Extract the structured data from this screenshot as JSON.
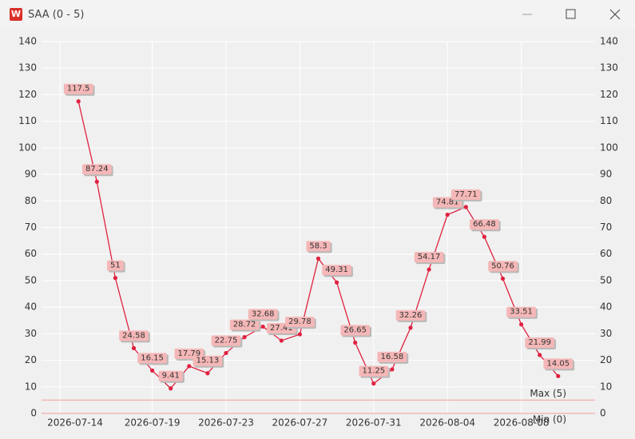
{
  "window": {
    "title": "SAA (0 - 5)"
  },
  "chart_data": {
    "type": "line",
    "x": [
      "2026-07-15",
      "2026-07-16",
      "2026-07-17",
      "2026-07-18",
      "2026-07-19",
      "2026-07-20",
      "2026-07-21",
      "2026-07-22",
      "2026-07-23",
      "2026-07-24",
      "2026-07-25",
      "2026-07-26",
      "2026-07-27",
      "2026-07-28",
      "2026-07-29",
      "2026-07-30",
      "2026-07-31",
      "2026-08-01",
      "2026-08-02",
      "2026-08-03",
      "2026-08-04",
      "2026-08-05",
      "2026-08-06",
      "2026-08-07",
      "2026-08-08",
      "2026-08-09",
      "2026-08-10"
    ],
    "series": [
      {
        "color": "#e0213f",
        "values": [
          117.5,
          87.24,
          51,
          24.58,
          16.15,
          9.41,
          17.79,
          15.13,
          22.75,
          28.72,
          32.68,
          27.41,
          29.78,
          58.3,
          49.31,
          26.65,
          11.25,
          16.58,
          32.26,
          54.17,
          74.81,
          77.71,
          66.48,
          50.76,
          33.51,
          21.99,
          14.05
        ]
      }
    ],
    "xlim": [
      "2026-07-13",
      "2026-08-12"
    ],
    "xticks": [
      "2026-07-14",
      "2026-07-19",
      "2026-07-23",
      "2026-07-27",
      "2026-07-31",
      "2026-08-04",
      "2026-08-08"
    ],
    "ylim": [
      0,
      140
    ],
    "yticks": [
      0,
      10,
      20,
      30,
      40,
      50,
      60,
      70,
      80,
      90,
      100,
      110,
      120,
      130,
      140
    ],
    "y2lim": [
      0,
      140
    ],
    "y2ticks": [
      0,
      10,
      20,
      30,
      40,
      50,
      60,
      70,
      80,
      90,
      100,
      110,
      120,
      130,
      140
    ],
    "reference_lines": [
      {
        "label": "Max (5)",
        "value": 5
      },
      {
        "label": "Min (0)",
        "value": 0
      }
    ],
    "grid": true
  }
}
